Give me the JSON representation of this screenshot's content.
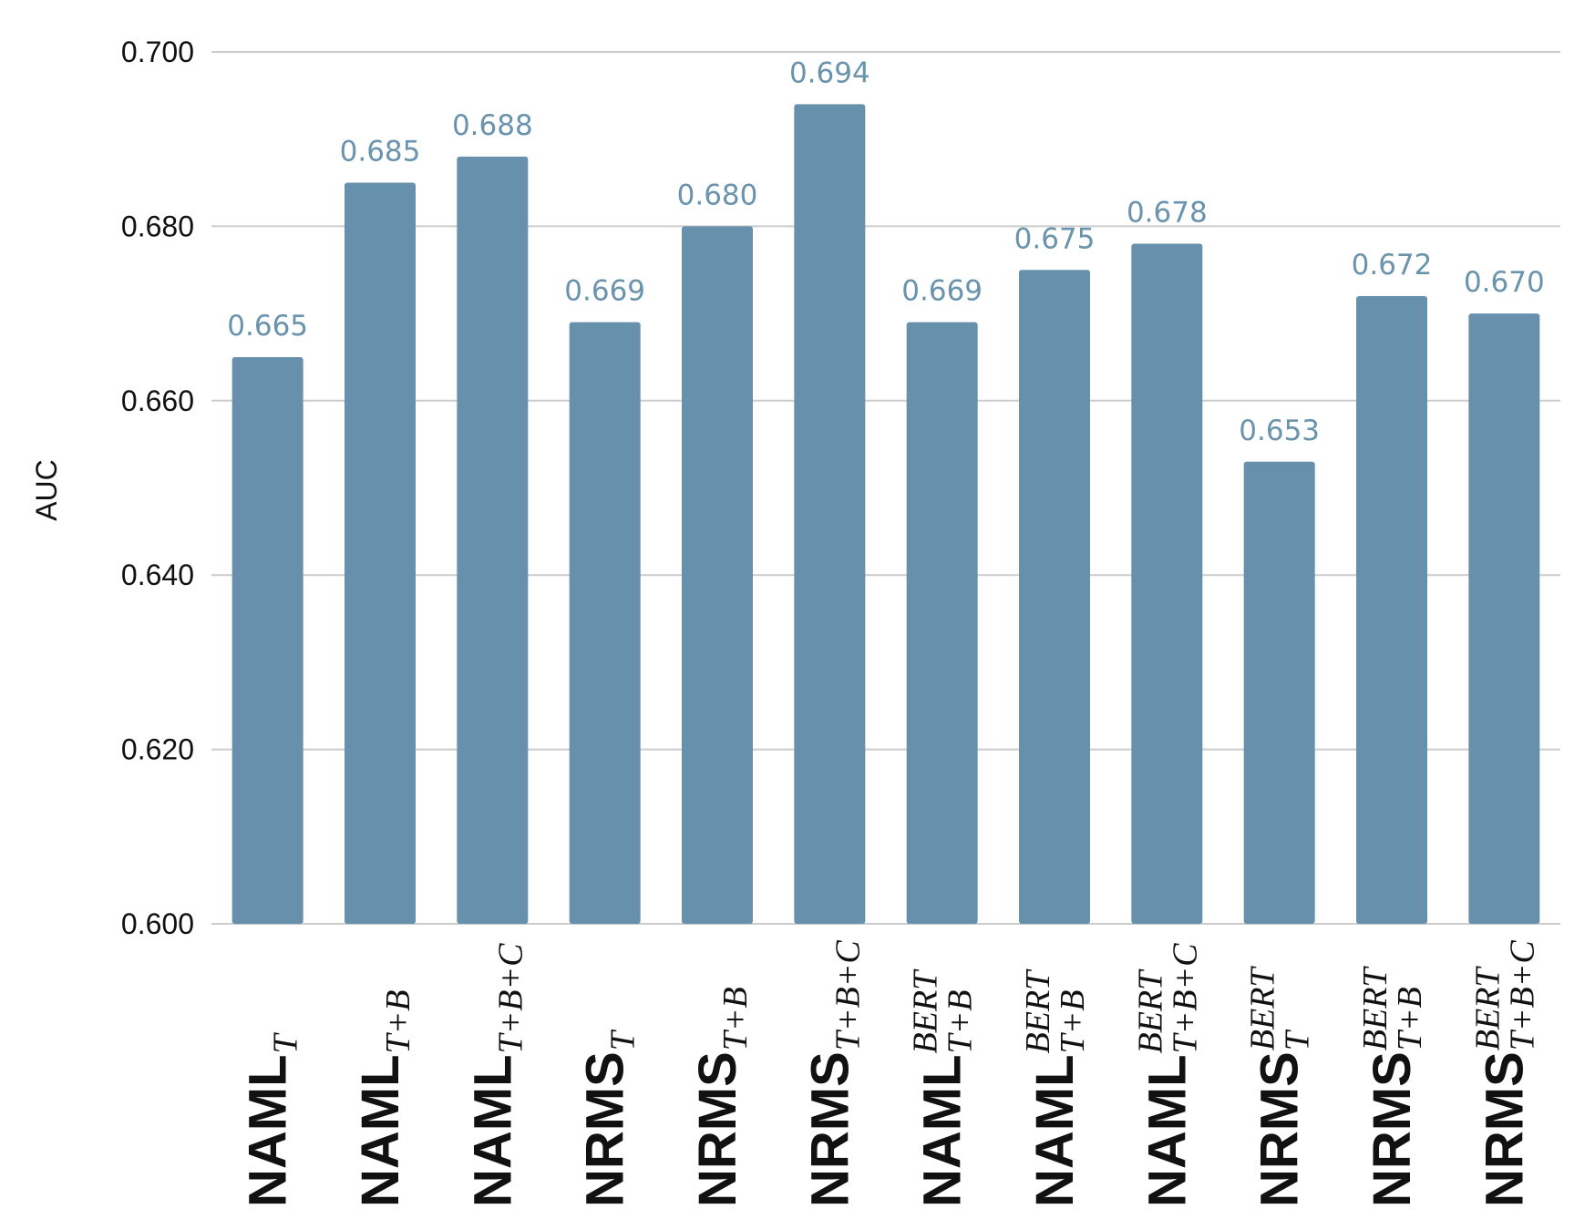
{
  "chart_data": {
    "type": "bar",
    "title": "",
    "xlabel": "",
    "ylabel": "AUC",
    "ylim": [
      0.6,
      0.7
    ],
    "yticks": [
      "0.600",
      "0.620",
      "0.640",
      "0.660",
      "0.680",
      "0.700"
    ],
    "grid": true,
    "bar_color": "#6690ab",
    "label_color": "#6a93ad",
    "categories": [
      {
        "base": "NAML",
        "sub": "T",
        "sup": ""
      },
      {
        "base": "NAML",
        "sub": "T+B",
        "sup": ""
      },
      {
        "base": "NAML",
        "sub": "T+B+C",
        "sup": ""
      },
      {
        "base": "NRMS",
        "sub": "T",
        "sup": ""
      },
      {
        "base": "NRMS",
        "sub": "T+B",
        "sup": ""
      },
      {
        "base": "NRMS",
        "sub": "T+B+C",
        "sup": ""
      },
      {
        "base": "NAML",
        "sub": "T+B",
        "sup": "BERT"
      },
      {
        "base": "NAML",
        "sub": "T+B",
        "sup": "BERT"
      },
      {
        "base": "NAML",
        "sub": "T+B+C",
        "sup": "BERT"
      },
      {
        "base": "NRMS",
        "sub": "T",
        "sup": "BERT"
      },
      {
        "base": "NRMS",
        "sub": "T+B",
        "sup": "BERT"
      },
      {
        "base": "NRMS",
        "sub": "T+B+C",
        "sup": "BERT"
      }
    ],
    "values": [
      0.665,
      0.685,
      0.688,
      0.669,
      0.68,
      0.694,
      0.669,
      0.675,
      0.678,
      0.653,
      0.672,
      0.67
    ],
    "value_labels": [
      "0.665",
      "0.685",
      "0.688",
      "0.669",
      "0.680",
      "0.694",
      "0.669",
      "0.675",
      "0.678",
      "0.653",
      "0.672",
      "0.670"
    ]
  }
}
